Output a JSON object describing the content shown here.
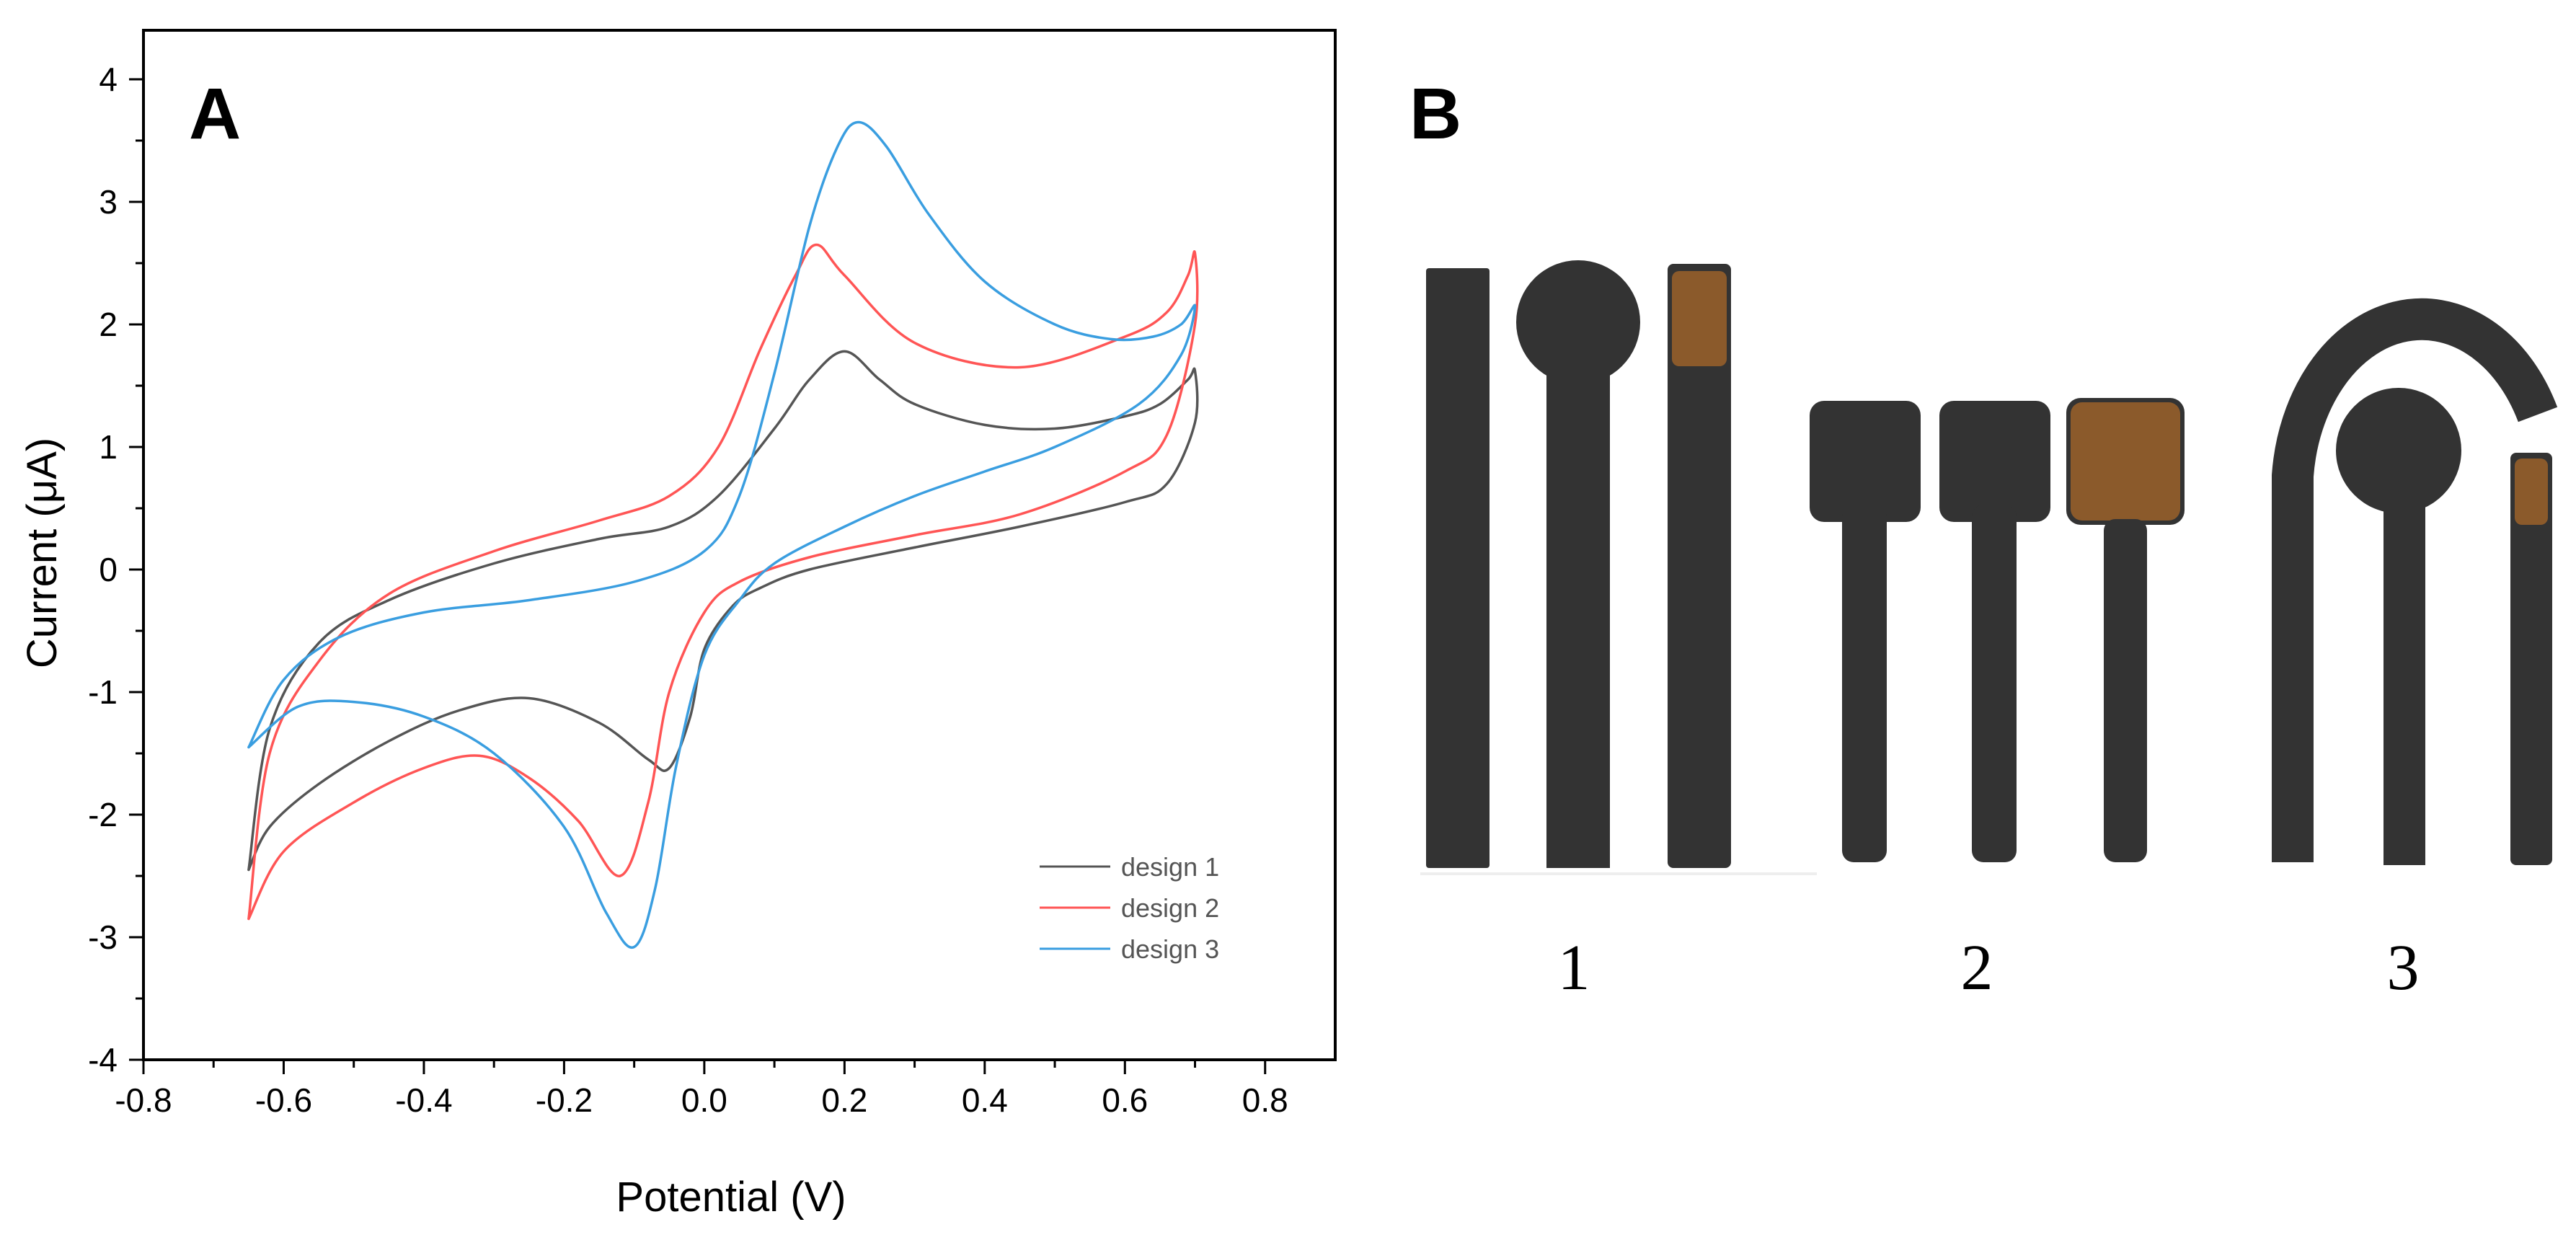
{
  "panels": {
    "a_label": "A",
    "b_label": "B"
  },
  "chart_data": {
    "type": "line",
    "title": "",
    "xlabel": "Potential (V)",
    "ylabel": "Current (μA)",
    "xlim": [
      -0.8,
      0.9
    ],
    "ylim": [
      -4,
      4.4
    ],
    "xticks": [
      -0.8,
      -0.6,
      -0.4,
      -0.2,
      0.0,
      0.2,
      0.4,
      0.6,
      0.8
    ],
    "xtick_labels": [
      "-0.8",
      "-0.6",
      "-0.4",
      "-0.2",
      "0.0",
      "0.2",
      "0.4",
      "0.6",
      "0.8"
    ],
    "yticks": [
      -4,
      -3,
      -2,
      -1,
      0,
      1,
      2,
      3,
      4
    ],
    "ytick_labels": [
      "-4",
      "-3",
      "-2",
      "-1",
      "0",
      "1",
      "2",
      "3",
      "4"
    ],
    "legend_position": "bottom-right",
    "series": [
      {
        "name": "design 1",
        "color": "#555555",
        "x": [
          -0.65,
          -0.62,
          -0.55,
          -0.45,
          -0.3,
          -0.15,
          -0.05,
          0.02,
          0.1,
          0.15,
          0.2,
          0.25,
          0.3,
          0.4,
          0.5,
          0.6,
          0.65,
          0.69,
          0.7,
          0.7,
          0.66,
          0.6,
          0.45,
          0.3,
          0.15,
          0.08,
          0.04,
          0.0,
          -0.02,
          -0.05,
          -0.08,
          -0.15,
          -0.25,
          -0.35,
          -0.45,
          -0.55,
          -0.62,
          -0.65
        ],
        "y": [
          -2.45,
          -1.3,
          -0.6,
          -0.25,
          0.05,
          0.25,
          0.35,
          0.6,
          1.15,
          1.55,
          1.78,
          1.55,
          1.35,
          1.18,
          1.15,
          1.25,
          1.35,
          1.55,
          1.62,
          1.2,
          0.7,
          0.55,
          0.35,
          0.18,
          0.0,
          -0.15,
          -0.3,
          -0.65,
          -1.2,
          -1.62,
          -1.55,
          -1.25,
          -1.05,
          -1.15,
          -1.4,
          -1.75,
          -2.1,
          -2.45
        ]
      },
      {
        "name": "design 2",
        "color": "#ff5555",
        "x": [
          -0.65,
          -0.62,
          -0.55,
          -0.45,
          -0.3,
          -0.15,
          -0.05,
          0.02,
          0.08,
          0.13,
          0.16,
          0.2,
          0.3,
          0.45,
          0.6,
          0.66,
          0.69,
          0.7,
          0.7,
          0.66,
          0.6,
          0.45,
          0.3,
          0.15,
          0.05,
          0.0,
          -0.05,
          -0.08,
          -0.12,
          -0.18,
          -0.25,
          -0.32,
          -0.4,
          -0.5,
          -0.6,
          -0.65
        ],
        "y": [
          -2.85,
          -1.5,
          -0.75,
          -0.2,
          0.15,
          0.4,
          0.6,
          1.0,
          1.8,
          2.4,
          2.65,
          2.4,
          1.85,
          1.65,
          1.9,
          2.1,
          2.4,
          2.58,
          2.0,
          1.1,
          0.8,
          0.45,
          0.28,
          0.1,
          -0.1,
          -0.35,
          -1.0,
          -1.9,
          -2.5,
          -2.05,
          -1.7,
          -1.52,
          -1.62,
          -1.9,
          -2.3,
          -2.85
        ]
      },
      {
        "name": "design 3",
        "color": "#3a9ee0",
        "x": [
          -0.65,
          -0.6,
          -0.52,
          -0.4,
          -0.25,
          -0.1,
          0.0,
          0.05,
          0.1,
          0.15,
          0.19,
          0.22,
          0.26,
          0.32,
          0.4,
          0.5,
          0.58,
          0.64,
          0.68,
          0.7,
          0.68,
          0.62,
          0.5,
          0.4,
          0.3,
          0.2,
          0.1,
          0.05,
          0.0,
          -0.04,
          -0.07,
          -0.1,
          -0.14,
          -0.2,
          -0.3,
          -0.4,
          -0.5,
          -0.58,
          -0.65
        ],
        "y": [
          -1.45,
          -0.9,
          -0.55,
          -0.35,
          -0.25,
          -0.1,
          0.15,
          0.6,
          1.6,
          2.8,
          3.45,
          3.65,
          3.45,
          2.9,
          2.35,
          2.0,
          1.88,
          1.9,
          2.0,
          2.15,
          1.75,
          1.35,
          1.0,
          0.8,
          0.6,
          0.35,
          0.05,
          -0.25,
          -0.7,
          -1.6,
          -2.6,
          -3.08,
          -2.8,
          -2.1,
          -1.5,
          -1.2,
          -1.08,
          -1.12,
          -1.45
        ]
      }
    ]
  },
  "schematic": {
    "captions": [
      "1",
      "2",
      "3"
    ],
    "colors": {
      "electrode": "#333333",
      "reference": "#8b5a2b"
    }
  }
}
